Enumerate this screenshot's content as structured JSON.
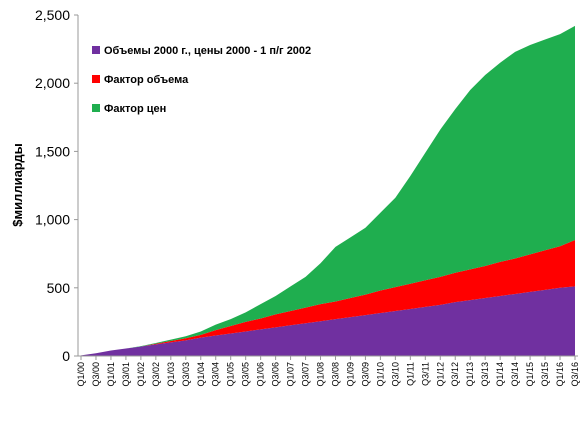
{
  "chart_data": {
    "type": "stacked_area",
    "y_label": "$миллиарды",
    "categories": [
      "Q1/00",
      "Q3/00",
      "Q1/01",
      "Q3/01",
      "Q1/02",
      "Q3/02",
      "Q1/03",
      "Q3/03",
      "Q1/04",
      "Q3/04",
      "Q1/05",
      "Q3/05",
      "Q1/06",
      "Q3/06",
      "Q1/07",
      "Q3/07",
      "Q1/08",
      "Q3/08",
      "Q1/09",
      "Q3/09",
      "Q1/10",
      "Q3/10",
      "Q1/11",
      "Q3/11",
      "Q1/12",
      "Q3/12",
      "Q1/13",
      "Q3/13",
      "Q1/14",
      "Q3/14",
      "Q1/15",
      "Q3/15",
      "Q1/16",
      "Q3/16"
    ],
    "series": [
      {
        "name": "Объемы 2000 г., цены 2000 - 1 п/г 2002",
        "color": "#7030a0",
        "values": [
          5,
          20,
          40,
          55,
          70,
          85,
          100,
          115,
          135,
          150,
          165,
          180,
          195,
          210,
          225,
          240,
          255,
          270,
          285,
          300,
          315,
          330,
          345,
          360,
          375,
          395,
          410,
          425,
          440,
          455,
          470,
          485,
          500,
          510
        ]
      },
      {
        "name": "Фактор объема",
        "color": "#ff0000",
        "values": [
          0,
          0,
          0,
          0,
          0,
          5,
          10,
          15,
          20,
          40,
          55,
          70,
          80,
          95,
          105,
          115,
          125,
          130,
          140,
          150,
          165,
          175,
          185,
          195,
          205,
          215,
          225,
          235,
          250,
          260,
          275,
          290,
          305,
          340
        ]
      },
      {
        "name": "Фактор цен",
        "color": "#1fae4f",
        "values": [
          0,
          0,
          0,
          0,
          2,
          5,
          10,
          15,
          25,
          40,
          50,
          70,
          105,
          135,
          180,
          225,
          300,
          400,
          445,
          490,
          570,
          655,
          790,
          935,
          1080,
          1200,
          1315,
          1400,
          1460,
          1515,
          1535,
          1545,
          1555,
          1570
        ]
      }
    ],
    "ylim": [
      0,
      2500
    ],
    "yticks": [
      0,
      500,
      {
        "value": 1000,
        "label": "1,000"
      },
      {
        "value": 1500,
        "label": "1,500"
      },
      {
        "value": 2000,
        "label": "2,000"
      },
      {
        "value": 2500,
        "label": "2,500"
      }
    ],
    "legend": "upper left"
  }
}
